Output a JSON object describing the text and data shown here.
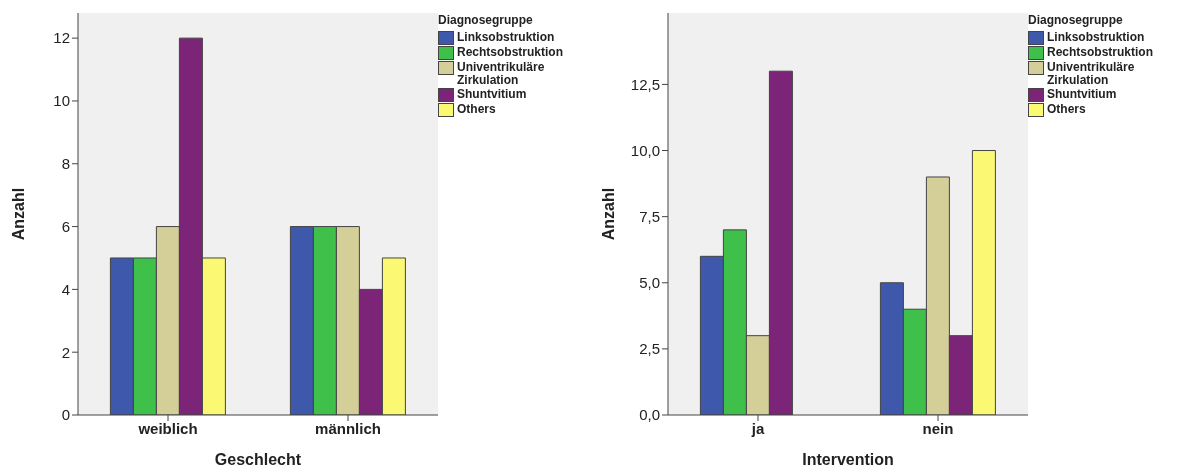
{
  "chart_data": [
    {
      "type": "bar",
      "xlabel": "Geschlecht",
      "ylabel": "Anzahl",
      "legend_title": "Diagnosegruppe",
      "legend": "top right",
      "grid": false,
      "categories": [
        "weiblich",
        "männlich"
      ],
      "ylim": [
        0,
        12.8
      ],
      "yticks": [
        0,
        2,
        4,
        6,
        8,
        10,
        12
      ],
      "series": [
        {
          "name": "Linksobstruktion",
          "color": "#3e58ac",
          "values": [
            5,
            6
          ]
        },
        {
          "name": "Rechtsobstruktion",
          "color": "#3ec04a",
          "values": [
            5,
            6
          ]
        },
        {
          "name": "Univentrikuläre Zirkulation",
          "color": "#d4cf98",
          "values": [
            6,
            6
          ]
        },
        {
          "name": "Shuntvitium",
          "color": "#7c2578",
          "values": [
            12,
            4
          ]
        },
        {
          "name": "Others",
          "color": "#fbf973",
          "values": [
            5,
            5
          ]
        }
      ]
    },
    {
      "type": "bar",
      "xlabel": "Intervention",
      "ylabel": "Anzahl",
      "legend_title": "Diagnosegruppe",
      "legend": "top right",
      "grid": false,
      "categories": [
        "ja",
        "nein"
      ],
      "ylim": [
        0,
        15.2
      ],
      "yticks": [
        {
          "value": 0,
          "label": "0,0"
        },
        {
          "value": 2.5,
          "label": "2,5"
        },
        {
          "value": 5,
          "label": "5,0"
        },
        {
          "value": 7.5,
          "label": "7,5"
        },
        {
          "value": 10,
          "label": "10,0"
        },
        {
          "value": 12.5,
          "label": "12,5"
        }
      ],
      "series": [
        {
          "name": "Linksobstruktion",
          "color": "#3e58ac",
          "values": [
            6,
            5
          ]
        },
        {
          "name": "Rechtsobstruktion",
          "color": "#3ec04a",
          "values": [
            7,
            4
          ]
        },
        {
          "name": "Univentrikuläre Zirkulation",
          "color": "#d4cf98",
          "values": [
            3,
            9
          ]
        },
        {
          "name": "Shuntvitium",
          "color": "#7c2578",
          "values": [
            13,
            3
          ]
        },
        {
          "name": "Others",
          "color": "#fbf973",
          "values": [
            null,
            10
          ]
        }
      ]
    }
  ]
}
